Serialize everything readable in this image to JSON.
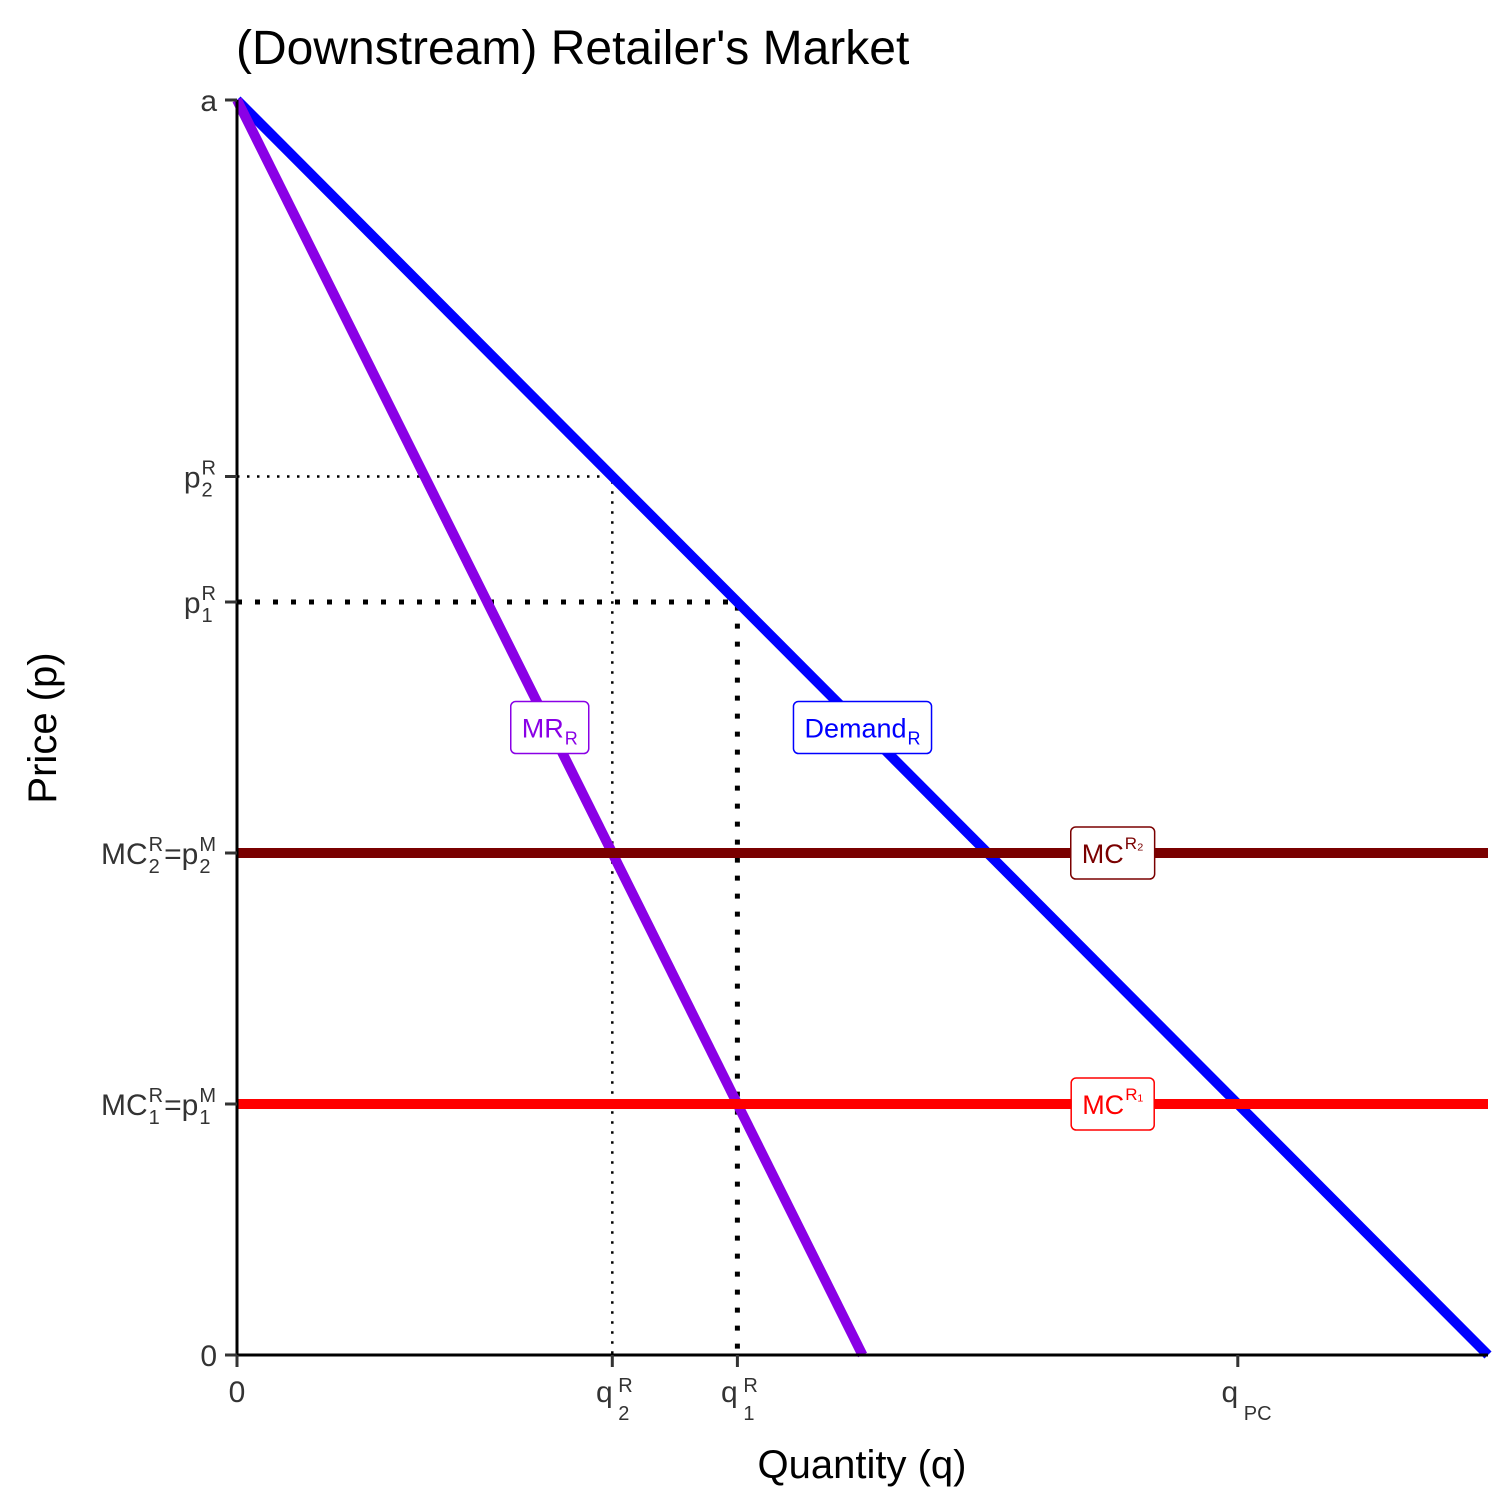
{
  "chart_data": {
    "type": "line",
    "title": "(Downstream) Retailer's Market",
    "xlabel": "Quantity (q)",
    "ylabel": "Price (p)",
    "xlim": [
      0,
      10
    ],
    "ylim": [
      0,
      10
    ],
    "grid": false,
    "x_ticks": [
      {
        "value": 0,
        "base": "0",
        "sub": "",
        "sup": ""
      },
      {
        "value": 3,
        "base": "q",
        "sub": "2",
        "sup": "R"
      },
      {
        "value": 4,
        "base": "q",
        "sub": "1",
        "sup": "R"
      },
      {
        "value": 8,
        "base": "q",
        "sub": "PC",
        "sup": ""
      }
    ],
    "y_ticks": [
      {
        "value": 0,
        "parts": [
          {
            "base": "0",
            "sub": "",
            "sup": ""
          }
        ]
      },
      {
        "value": 2,
        "parts": [
          {
            "base": "MC",
            "sub": "1",
            "sup": "R"
          },
          {
            "base": " = ",
            "sub": "",
            "sup": ""
          },
          {
            "base": "p",
            "sub": "1",
            "sup": "M"
          }
        ]
      },
      {
        "value": 4,
        "parts": [
          {
            "base": "MC",
            "sub": "2",
            "sup": "R"
          },
          {
            "base": " = ",
            "sub": "",
            "sup": ""
          },
          {
            "base": "p",
            "sub": "2",
            "sup": "M"
          }
        ]
      },
      {
        "value": 6,
        "parts": [
          {
            "base": "p",
            "sub": "1",
            "sup": "R"
          }
        ]
      },
      {
        "value": 7,
        "parts": [
          {
            "base": "p",
            "sub": "2",
            "sup": "R"
          }
        ]
      },
      {
        "value": 10,
        "parts": [
          {
            "base": "a",
            "sub": "",
            "sup": ""
          }
        ]
      }
    ],
    "series": [
      {
        "key": "demand",
        "name": "Demand",
        "name_sub": "R",
        "name_sup": "",
        "color": "#0000ff",
        "x": [
          0,
          10
        ],
        "y": [
          10,
          0
        ],
        "label_at": [
          5,
          5
        ]
      },
      {
        "key": "mr",
        "name": "MR",
        "name_sub": "R",
        "name_sup": "",
        "color": "#8a00e6",
        "x": [
          0,
          5
        ],
        "y": [
          10,
          0
        ],
        "label_at": [
          2.5,
          5
        ]
      },
      {
        "key": "mc2",
        "name": "MC",
        "name_sub": "",
        "name_sup": "R₂",
        "color": "#7a0000",
        "x": [
          0,
          10
        ],
        "y": [
          4,
          4
        ],
        "label_at": [
          7,
          4
        ]
      },
      {
        "key": "mc1",
        "name": "MC",
        "name_sub": "",
        "name_sup": "R₁",
        "color": "#ff0000",
        "x": [
          0,
          10
        ],
        "y": [
          2,
          2
        ],
        "label_at": [
          7,
          2
        ]
      }
    ],
    "reference_lines": [
      {
        "key": "p2",
        "style": "fine",
        "x": [
          0,
          3,
          3
        ],
        "y": [
          7,
          7,
          0
        ]
      },
      {
        "key": "p1",
        "style": "heavy",
        "x": [
          0,
          4,
          4
        ],
        "y": [
          6,
          6,
          0
        ]
      }
    ]
  }
}
